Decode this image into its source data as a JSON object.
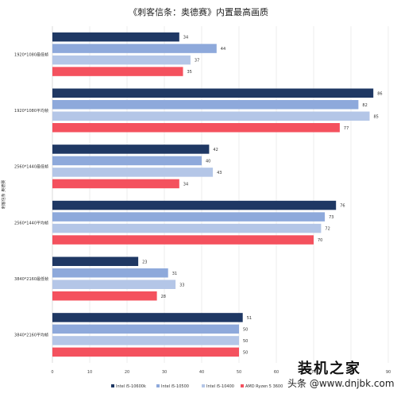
{
  "chart_data": {
    "type": "bar",
    "orientation": "horizontal",
    "title": "《刺客信条：奥德赛》内置最高画质",
    "ylabel": "刺客信条 奥德赛",
    "xlim": [
      0,
      90
    ],
    "xticks": [
      0,
      10,
      20,
      30,
      40,
      50,
      60,
      70,
      80,
      90
    ],
    "grid": true,
    "legend_position": "bottom",
    "categories": [
      "1920*1080最低帧",
      "1920*1080平均帧",
      "2560*1440最低帧",
      "2560*1440平均帧",
      "3840*2160最低帧",
      "3840*2160平均帧"
    ],
    "series": [
      {
        "name": "Intel i5-10600k",
        "color": "#1f3864",
        "values": [
          34,
          86,
          42,
          76,
          23,
          51
        ]
      },
      {
        "name": "Intel i5-10500",
        "color": "#8ea9db",
        "values": [
          44,
          82,
          40,
          73,
          31,
          50
        ]
      },
      {
        "name": "Intel i5-10400",
        "color": "#b4c6e7",
        "values": [
          37,
          85,
          43,
          72,
          33,
          50
        ]
      },
      {
        "name": "AMD Ryzen 5 3600",
        "color": "#f4515e",
        "values": [
          35,
          77,
          34,
          70,
          28,
          50
        ]
      }
    ]
  },
  "watermark": {
    "text": "装机之家",
    "sub": "头条 @www.dnjbk.com"
  }
}
